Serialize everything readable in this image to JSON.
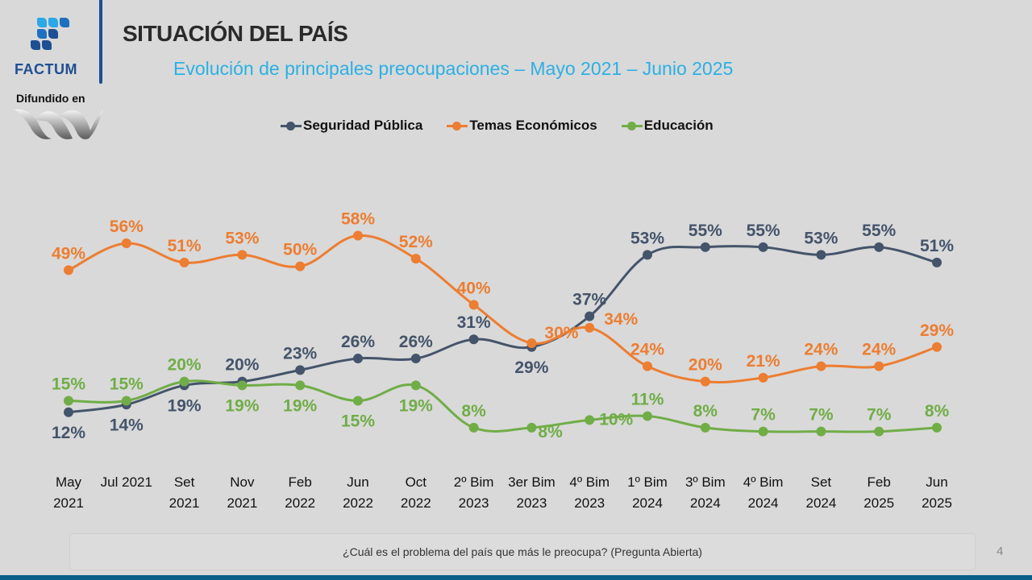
{
  "brand": {
    "name": "FACTUM",
    "disseminated_label": "Difundido en",
    "colors": {
      "brand_blue": "#1d4f93",
      "light_blue": "#2ba8e8"
    }
  },
  "header": {
    "title": "SITUACIÓN DEL PAÍS",
    "subtitle": "Evolución de principales preocupaciones – Mayo 2021 – Junio 2025"
  },
  "footer": {
    "question": "¿Cuál es el problema del país que más le preocupa? (Pregunta Abierta)",
    "page_number": "4"
  },
  "chart_data": {
    "type": "line",
    "title": "Evolución de principales preocupaciones – Mayo 2021 – Junio 2025",
    "xlabel": "",
    "ylabel": "",
    "ylim": [
      0,
      70
    ],
    "grid": false,
    "legend_position": "top-center",
    "categories": [
      [
        "May",
        "2021"
      ],
      [
        "Jul 2021",
        ""
      ],
      [
        "Set",
        "2021"
      ],
      [
        "Nov",
        "2021"
      ],
      [
        "Feb",
        "2022"
      ],
      [
        "Jun",
        "2022"
      ],
      [
        "Oct",
        "2022"
      ],
      [
        "2º Bim",
        "2023"
      ],
      [
        "3er Bim",
        "2023"
      ],
      [
        "4º Bim",
        "2023"
      ],
      [
        "1º Bim",
        "2024"
      ],
      [
        "3º Bim",
        "2024"
      ],
      [
        "4º Bim",
        "2024"
      ],
      [
        "Set",
        "2024"
      ],
      [
        "Feb",
        "2025"
      ],
      [
        "Jun",
        "2025"
      ]
    ],
    "series": [
      {
        "name": "Seguridad Pública",
        "color": "#44546a",
        "values": [
          12,
          14,
          19,
          20,
          23,
          26,
          26,
          31,
          29,
          37,
          53,
          55,
          55,
          53,
          55,
          51
        ],
        "label_pos": [
          "below",
          "below",
          "below",
          "above",
          "above",
          "above",
          "above",
          "above",
          "below",
          "above",
          "above",
          "above",
          "above",
          "above",
          "above",
          "above"
        ]
      },
      {
        "name": "Temas Económicos",
        "color": "#ed7d31",
        "values": [
          49,
          56,
          51,
          53,
          50,
          58,
          52,
          40,
          30,
          34,
          24,
          20,
          21,
          24,
          24,
          29
        ],
        "label_pos": [
          "above",
          "above",
          "above",
          "above",
          "above",
          "above",
          "above",
          "above",
          "right",
          "right",
          "above",
          "above",
          "above",
          "above",
          "above",
          "above"
        ]
      },
      {
        "name": "Educación",
        "color": "#70ad47",
        "values": [
          15,
          15,
          20,
          19,
          19,
          15,
          19,
          8,
          8,
          10,
          11,
          8,
          7,
          7,
          7,
          8
        ],
        "label_pos": [
          "above",
          "above",
          "above",
          "below",
          "below",
          "below",
          "below",
          "above",
          "below",
          "right",
          "above",
          "above",
          "above",
          "above",
          "above",
          "above"
        ]
      }
    ]
  }
}
